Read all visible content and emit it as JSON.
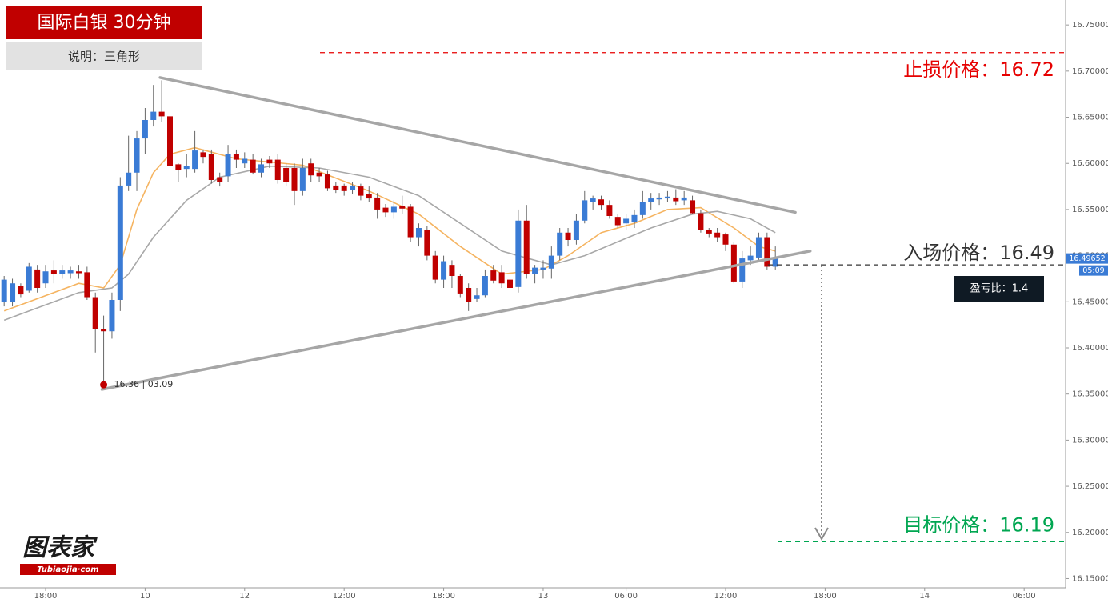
{
  "header": {
    "title": "国际白银 30分钟",
    "subtitle": "说明：三角形"
  },
  "logo": {
    "name": "图表家",
    "site": "Tubiaojia·com"
  },
  "chart_data": {
    "type": "candlestick",
    "up_color": "#3a7bd5",
    "down_color": "#c00000",
    "xlim": [
      -0.5,
      128
    ],
    "ylim": [
      16.14,
      16.777
    ],
    "xticks": [
      {
        "value": 5,
        "label": "18:00"
      },
      {
        "value": 17,
        "label": "10"
      },
      {
        "value": 29,
        "label": "12"
      },
      {
        "value": 41,
        "label": "12:00"
      },
      {
        "value": 53,
        "label": "18:00"
      },
      {
        "value": 65,
        "label": "13"
      },
      {
        "value": 75,
        "label": "06:00"
      },
      {
        "value": 87,
        "label": "12:00"
      },
      {
        "value": 99,
        "label": "18:00"
      },
      {
        "value": 111,
        "label": "14"
      },
      {
        "value": 123,
        "label": "06:00"
      }
    ],
    "yticks": [
      {
        "value": 16.15,
        "label": "16.15000"
      },
      {
        "value": 16.2,
        "label": "16.20000"
      },
      {
        "value": 16.25,
        "label": "16.25000"
      },
      {
        "value": 16.3,
        "label": "16.30000"
      },
      {
        "value": 16.35,
        "label": "16.35000"
      },
      {
        "value": 16.4,
        "label": "16.40000"
      },
      {
        "value": 16.45,
        "label": "16.45000"
      },
      {
        "value": 16.5,
        "label": "16.50000"
      },
      {
        "value": 16.55,
        "label": "16.55000"
      },
      {
        "value": 16.6,
        "label": "16.60000"
      },
      {
        "value": 16.65,
        "label": "16.65000"
      },
      {
        "value": 16.7,
        "label": "16.70000"
      },
      {
        "value": 16.75,
        "label": "16.75000"
      }
    ],
    "open": [
      16.45,
      16.45,
      16.467,
      16.462,
      16.485,
      16.47,
      16.484,
      16.48,
      16.481,
      16.483,
      16.482,
      16.455,
      16.42,
      16.418,
      16.452,
      16.576,
      16.59,
      16.627,
      16.647,
      16.656,
      16.651,
      16.599,
      16.594,
      16.594,
      16.612,
      16.61,
      16.585,
      16.586,
      16.61,
      16.6,
      16.604,
      16.59,
      16.604,
      16.604,
      16.595,
      16.595,
      16.57,
      16.6,
      16.59,
      16.588,
      16.576,
      16.576,
      16.571,
      16.575,
      16.567,
      16.563,
      16.552,
      16.547,
      16.554,
      16.553,
      16.52,
      16.528,
      16.5,
      16.474,
      16.49,
      16.478,
      16.465,
      16.453,
      16.457,
      16.484,
      16.482,
      16.474,
      16.466,
      16.538,
      16.48,
      16.485,
      16.486,
      16.5,
      16.525,
      16.517,
      16.538,
      16.558,
      16.561,
      16.555,
      16.542,
      16.535,
      16.536,
      16.544,
      16.558,
      16.561,
      16.562,
      16.563,
      16.56,
      16.56,
      16.546,
      16.528,
      16.525,
      16.523,
      16.512,
      16.472,
      16.495,
      16.498,
      16.52,
      16.488
    ],
    "high": [
      16.478,
      16.475,
      16.47,
      16.492,
      16.49,
      16.49,
      16.495,
      16.49,
      16.488,
      16.49,
      16.488,
      16.46,
      16.435,
      16.46,
      16.585,
      16.63,
      16.635,
      16.66,
      16.685,
      16.69,
      16.655,
      16.6,
      16.61,
      16.635,
      16.615,
      16.615,
      16.59,
      16.62,
      16.615,
      16.612,
      16.61,
      16.605,
      16.608,
      16.61,
      16.6,
      16.6,
      16.605,
      16.605,
      16.595,
      16.592,
      16.58,
      16.578,
      16.58,
      16.578,
      16.575,
      16.568,
      16.556,
      16.56,
      16.565,
      16.556,
      16.535,
      16.532,
      16.505,
      16.5,
      16.495,
      16.48,
      16.47,
      16.465,
      16.485,
      16.49,
      16.49,
      16.48,
      16.55,
      16.555,
      16.49,
      16.495,
      16.51,
      16.53,
      16.53,
      16.545,
      16.57,
      16.565,
      16.565,
      16.56,
      16.545,
      16.545,
      16.55,
      16.57,
      16.568,
      16.568,
      16.57,
      16.572,
      16.57,
      16.565,
      16.55,
      16.53,
      16.53,
      16.525,
      16.515,
      16.505,
      16.51,
      16.525,
      16.525,
      16.51
    ],
    "low": [
      16.445,
      16.445,
      16.455,
      16.46,
      16.46,
      16.465,
      16.47,
      16.475,
      16.475,
      16.475,
      16.452,
      16.395,
      16.36,
      16.41,
      16.44,
      16.57,
      16.57,
      16.61,
      16.64,
      16.645,
      16.59,
      16.58,
      16.585,
      16.59,
      16.6,
      16.578,
      16.575,
      16.58,
      16.595,
      16.595,
      16.588,
      16.585,
      16.595,
      16.578,
      16.575,
      16.555,
      16.565,
      16.58,
      16.58,
      16.57,
      16.568,
      16.565,
      16.567,
      16.56,
      16.558,
      16.54,
      16.542,
      16.54,
      16.545,
      16.515,
      16.51,
      16.495,
      16.47,
      16.465,
      16.465,
      16.455,
      16.44,
      16.45,
      16.455,
      16.47,
      16.465,
      16.46,
      16.46,
      16.475,
      16.47,
      16.475,
      16.475,
      16.495,
      16.51,
      16.512,
      16.535,
      16.55,
      16.55,
      16.54,
      16.53,
      16.528,
      16.53,
      16.54,
      16.55,
      16.555,
      16.558,
      16.555,
      16.555,
      16.545,
      16.525,
      16.52,
      16.515,
      16.505,
      16.47,
      16.465,
      16.49,
      16.495,
      16.485,
      16.485
    ],
    "close": [
      16.474,
      16.47,
      16.458,
      16.488,
      16.465,
      16.483,
      16.48,
      16.484,
      16.484,
      16.481,
      16.455,
      16.42,
      16.418,
      16.452,
      16.576,
      16.59,
      16.627,
      16.647,
      16.656,
      16.651,
      16.597,
      16.593,
      16.597,
      16.614,
      16.607,
      16.582,
      16.58,
      16.61,
      16.604,
      16.605,
      16.59,
      16.599,
      16.6,
      16.582,
      16.58,
      16.57,
      16.595,
      16.587,
      16.586,
      16.573,
      16.571,
      16.57,
      16.576,
      16.565,
      16.562,
      16.55,
      16.547,
      16.553,
      16.551,
      16.52,
      16.53,
      16.5,
      16.474,
      16.494,
      16.478,
      16.459,
      16.45,
      16.457,
      16.478,
      16.473,
      16.47,
      16.465,
      16.538,
      16.48,
      16.487,
      16.487,
      16.5,
      16.525,
      16.517,
      16.538,
      16.56,
      16.562,
      16.555,
      16.543,
      16.533,
      16.54,
      16.544,
      16.558,
      16.562,
      16.563,
      16.564,
      16.559,
      16.563,
      16.546,
      16.528,
      16.524,
      16.52,
      16.512,
      16.472,
      16.497,
      16.5,
      16.52,
      16.488,
      16.497
    ],
    "ma": [
      {
        "color": "#f5b461",
        "x": [
          0,
          9,
          12,
          14,
          16,
          18,
          20,
          23,
          28,
          36,
          44,
          50,
          55,
          60,
          65,
          68,
          72,
          76,
          80,
          84,
          88,
          91,
          93
        ],
        "values": [
          16.44,
          16.47,
          16.465,
          16.49,
          16.55,
          16.59,
          16.61,
          16.617,
          16.605,
          16.598,
          16.57,
          16.545,
          16.51,
          16.48,
          16.485,
          16.5,
          16.525,
          16.535,
          16.55,
          16.552,
          16.53,
          16.51,
          16.505
        ]
      },
      {
        "color": "#a8a8a8",
        "x": [
          0,
          9,
          13,
          15,
          18,
          22,
          26,
          32,
          38,
          44,
          50,
          55,
          60,
          66,
          70,
          74,
          78,
          83,
          86,
          90,
          93
        ],
        "values": [
          16.43,
          16.46,
          16.465,
          16.48,
          16.52,
          16.56,
          16.585,
          16.597,
          16.595,
          16.585,
          16.565,
          16.535,
          16.505,
          16.49,
          16.5,
          16.515,
          16.53,
          16.545,
          16.548,
          16.54,
          16.525
        ]
      }
    ],
    "trendlines": [
      {
        "color": "#a6a6a6",
        "x": [
          18.8,
          95.4
        ],
        "values": [
          16.693,
          16.547
        ]
      },
      {
        "color": "#a6a6a6",
        "x": [
          11.8,
          97.2
        ],
        "values": [
          16.355,
          16.505
        ]
      }
    ],
    "levels": [
      {
        "label": "止损价格：16.72",
        "value": 16.72,
        "color": "#e60000"
      },
      {
        "label": "入场价格：16.49",
        "value": 16.49,
        "color": "#333333"
      },
      {
        "label": "目标价格：16.19",
        "value": 16.19,
        "color": "#00a651"
      }
    ],
    "low_marker": {
      "x": 12,
      "value": 16.36,
      "label": "16.36 | 03.09",
      "color": "#c00000"
    },
    "last_price": {
      "value": 16.49652,
      "countdown": "05:09",
      "color": "#3a7bd5"
    },
    "ratio_label": "盈亏比：1.4"
  }
}
